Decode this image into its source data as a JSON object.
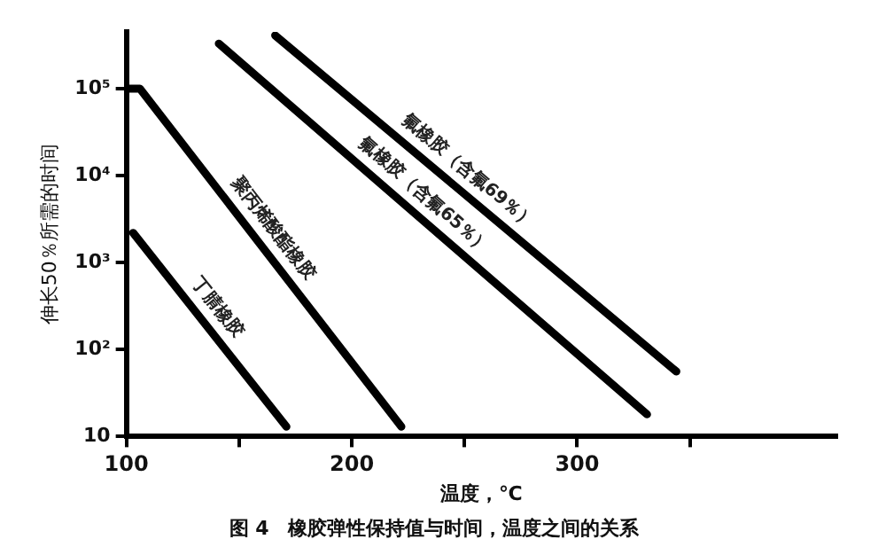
{
  "chart_data": {
    "type": "line",
    "title": "图 4　橡胶弹性保持值与时间，温度之间的关系",
    "xlabel": "温度，℃",
    "ylabel": "伸长50％所需的时间",
    "log": "y",
    "xlim": [
      100,
      415
    ],
    "ylim": [
      10,
      450000
    ],
    "xticks": [
      100,
      {
        "value": 150,
        "label": null
      },
      200,
      {
        "value": 250,
        "label": null
      },
      300,
      {
        "value": 350,
        "label": null
      }
    ],
    "yticks": [
      10,
      {
        "value": 100,
        "label": "10²"
      },
      {
        "value": 1000,
        "label": "10³"
      },
      {
        "value": 10000,
        "label": "10⁴"
      },
      {
        "value": 100000,
        "label": "10⁵"
      }
    ],
    "grid": false,
    "legend": false,
    "marker": "none",
    "line_style": "solid",
    "series": [
      {
        "name": "丁腈橡胶",
        "color": "#000000",
        "x": [
          103,
          171
        ],
        "values": [
          2200,
          13
        ]
      },
      {
        "name": "聚丙烯酸酯橡胶",
        "color": "#000000",
        "x": [
          100,
          106,
          222
        ],
        "values": [
          100000,
          100000,
          13
        ]
      },
      {
        "name": "氟橡胶（含氟65％）",
        "color": "#000000",
        "x": [
          141,
          331
        ],
        "values": [
          330000,
          18
        ]
      },
      {
        "name": "氟橡胶（含氟69％）",
        "color": "#000000",
        "x": [
          166,
          344
        ],
        "values": [
          410000,
          56
        ]
      }
    ]
  }
}
